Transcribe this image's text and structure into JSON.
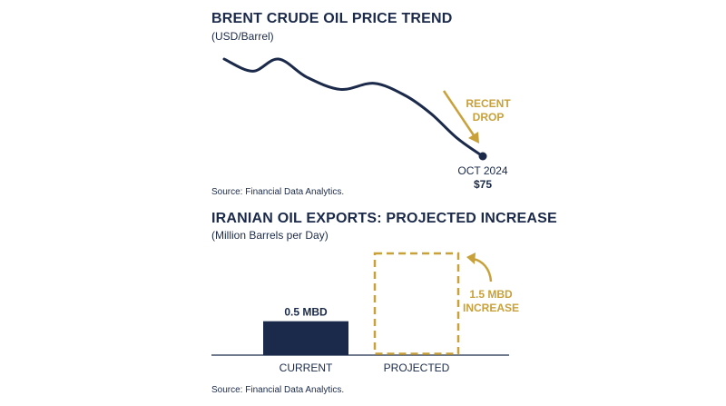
{
  "chart_data": [
    {
      "type": "line",
      "title": "BRENT CRUDE OIL PRICE TREND",
      "subtitle": "(USD/Barrel)",
      "series": [
        {
          "values": [
            {
              "x": 0.0,
              "y": 83
            },
            {
              "x": 0.11,
              "y": 82
            },
            {
              "x": 0.21,
              "y": 83
            },
            {
              "x": 0.32,
              "y": 81.5
            },
            {
              "x": 0.45,
              "y": 80.5
            },
            {
              "x": 0.58,
              "y": 81
            },
            {
              "x": 0.7,
              "y": 80
            },
            {
              "x": 0.8,
              "y": 78.5
            },
            {
              "x": 0.9,
              "y": 76.5
            },
            {
              "x": 1.0,
              "y": 75
            }
          ]
        }
      ],
      "endpoint": {
        "label": "OCT 2024",
        "value_label": "$75"
      },
      "annotation": {
        "line1": "RECENT",
        "line2": "DROP"
      },
      "source": "Source: Financial Data Analytics.",
      "colors": {
        "line": "#1b2a4a",
        "accent": "#c9a13b"
      }
    },
    {
      "type": "bar",
      "title": "IRANIAN OIL EXPORTS: PROJECTED INCREASE",
      "subtitle": "(Million Barrels per Day)",
      "categories": [
        "CURRENT",
        "PROJECTED"
      ],
      "values": [
        0.5,
        1.5
      ],
      "value_labels": [
        "0.5 MBD",
        ""
      ],
      "styles": [
        "solid",
        "dashed"
      ],
      "annotation": {
        "line1": "1.5 MBD",
        "line2": "INCREASE"
      },
      "source": "Source: Financial Data Analytics.",
      "colors": {
        "bar": "#1b2a4a",
        "projected": "#c9a13b",
        "axis": "#1b2a4a"
      }
    }
  ]
}
